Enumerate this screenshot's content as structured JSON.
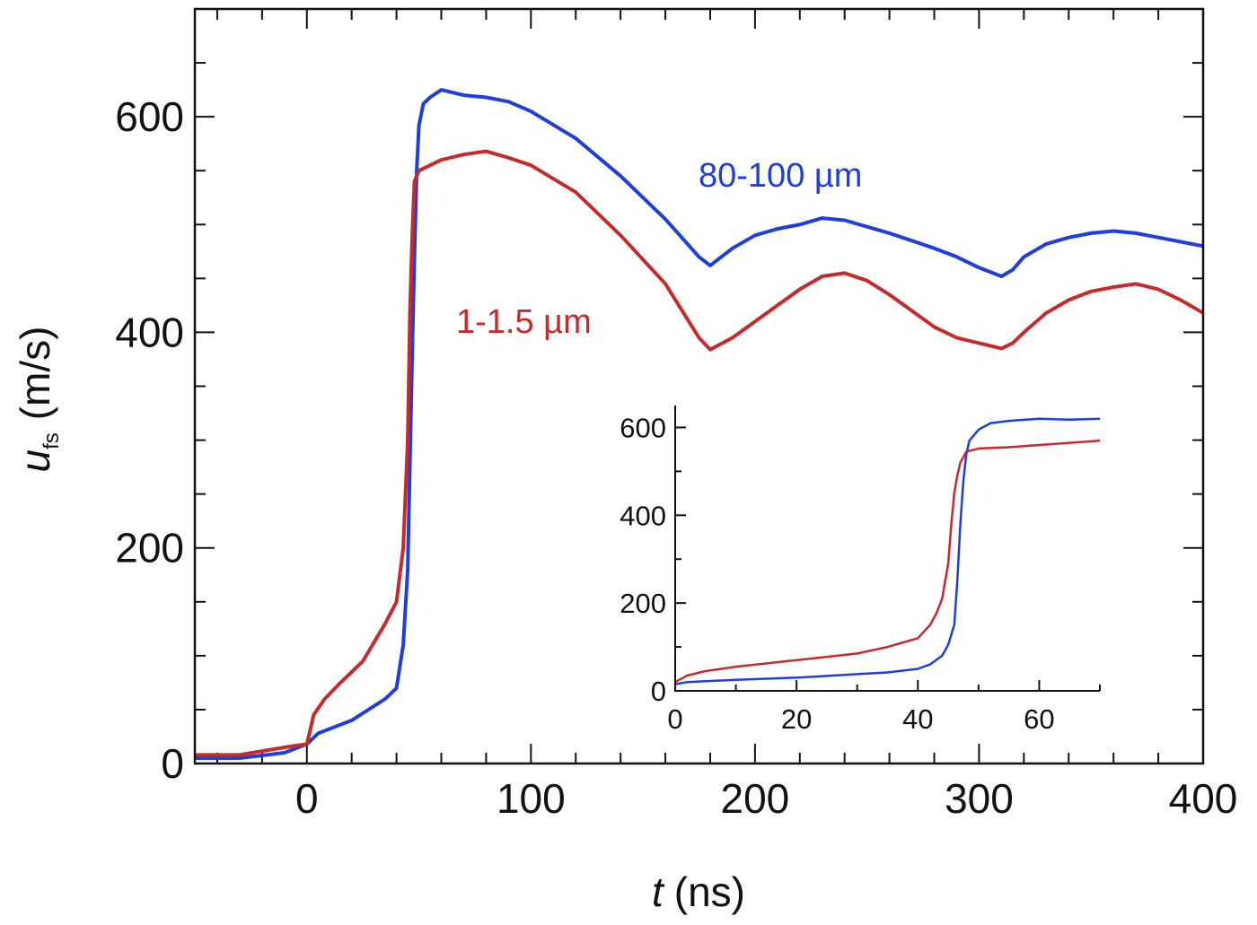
{
  "chart_data": [
    {
      "type": "line",
      "xlabel_var": "t",
      "xlabel_unit": "(ns)",
      "ylabel_var": "u",
      "ylabel_sub": "fs",
      "ylabel_unit": "(m/s)",
      "xlim": [
        -50,
        400
      ],
      "ylim": [
        0,
        700
      ],
      "xticks": [
        0,
        100,
        200,
        300,
        400
      ],
      "yticks": [
        0,
        200,
        400,
        600
      ],
      "grid": false,
      "series": [
        {
          "name": "80-100 µm",
          "color": "#1f3fdc",
          "x": [
            -50,
            -30,
            -10,
            0,
            5,
            20,
            35,
            40,
            43,
            45,
            46,
            47,
            48,
            49,
            50,
            52,
            55,
            60,
            70,
            80,
            90,
            100,
            120,
            140,
            160,
            175,
            180,
            190,
            200,
            210,
            220,
            230,
            240,
            250,
            260,
            270,
            280,
            290,
            300,
            310,
            315,
            320,
            330,
            340,
            350,
            360,
            370,
            380,
            390,
            400
          ],
          "y": [
            5,
            5,
            10,
            18,
            28,
            40,
            60,
            70,
            110,
            180,
            280,
            380,
            470,
            550,
            592,
            612,
            618,
            625,
            620,
            618,
            614,
            605,
            580,
            545,
            505,
            470,
            462,
            478,
            490,
            496,
            500,
            506,
            504,
            498,
            492,
            485,
            478,
            470,
            460,
            452,
            458,
            470,
            482,
            488,
            492,
            494,
            492,
            488,
            484,
            480
          ]
        },
        {
          "name": "1-1.5 µm",
          "color": "#c62b2b",
          "x": [
            -50,
            -30,
            -10,
            0,
            3,
            8,
            15,
            25,
            35,
            40,
            43,
            45,
            46,
            47,
            48,
            50,
            55,
            60,
            70,
            80,
            90,
            100,
            120,
            140,
            160,
            175,
            180,
            190,
            200,
            210,
            220,
            230,
            240,
            250,
            260,
            270,
            280,
            290,
            300,
            310,
            315,
            320,
            330,
            340,
            350,
            360,
            370,
            380,
            390,
            400
          ],
          "y": [
            8,
            8,
            15,
            18,
            45,
            60,
            75,
            95,
            130,
            150,
            200,
            300,
            420,
            490,
            540,
            550,
            555,
            560,
            565,
            568,
            562,
            555,
            530,
            490,
            445,
            395,
            384,
            395,
            410,
            425,
            440,
            452,
            455,
            448,
            435,
            420,
            405,
            395,
            390,
            385,
            390,
            400,
            418,
            430,
            438,
            442,
            445,
            440,
            430,
            418
          ]
        }
      ]
    },
    {
      "type": "line",
      "inset": true,
      "xlim": [
        0,
        70
      ],
      "ylim": [
        0,
        650
      ],
      "xticks": [
        0,
        20,
        40,
        60
      ],
      "yticks": [
        0,
        200,
        400,
        600
      ],
      "series": [
        {
          "color": "#1f3fdc",
          "x": [
            0,
            2,
            5,
            10,
            20,
            30,
            35,
            40,
            42,
            44,
            45,
            46,
            46.5,
            47,
            47.5,
            48,
            48.5,
            50,
            52,
            55,
            60,
            65,
            70
          ],
          "y": [
            15,
            20,
            22,
            25,
            30,
            38,
            42,
            50,
            60,
            80,
            105,
            150,
            250,
            380,
            480,
            540,
            570,
            595,
            610,
            615,
            620,
            618,
            620
          ]
        },
        {
          "color": "#c62b2b",
          "x": [
            0,
            2,
            5,
            10,
            20,
            30,
            35,
            40,
            42,
            43,
            44,
            45,
            45.5,
            46,
            46.5,
            47,
            48,
            50,
            55,
            60,
            65,
            70
          ],
          "y": [
            20,
            35,
            45,
            55,
            70,
            85,
            100,
            120,
            150,
            175,
            210,
            290,
            380,
            450,
            490,
            520,
            545,
            552,
            555,
            560,
            565,
            570
          ]
        }
      ]
    }
  ]
}
